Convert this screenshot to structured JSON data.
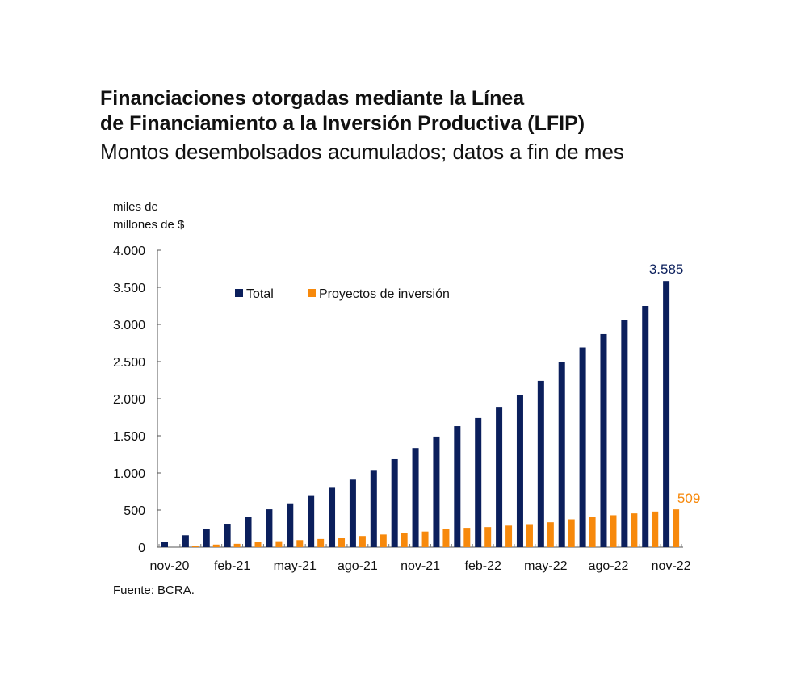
{
  "chart_data": {
    "type": "bar",
    "title": "Financiaciones otorgadas mediante la Línea de Financiamiento a la Inversión Productiva (LFIP)",
    "title_line1": "Financiaciones otorgadas mediante la Línea",
    "title_line2": "de Financiamiento a la Inversión Productiva (LFIP)",
    "subtitle": "Montos desembolsados acumulados; datos a fin de mes",
    "ylabel_line1": "miles de",
    "ylabel_line2": "millones de $",
    "ylim": [
      0,
      4000
    ],
    "yticks": [
      0,
      500,
      1000,
      1500,
      2000,
      2500,
      3000,
      3500,
      4000
    ],
    "ytick_labels": [
      "0",
      "500",
      "1.000",
      "1.500",
      "2.000",
      "2.500",
      "3.000",
      "3.500",
      "4.000"
    ],
    "categories": [
      "nov-20",
      "dic-20",
      "ene-21",
      "feb-21",
      "mar-21",
      "abr-21",
      "may-21",
      "jun-21",
      "jul-21",
      "ago-21",
      "sep-21",
      "oct-21",
      "nov-21",
      "dic-21",
      "ene-22",
      "feb-22",
      "mar-22",
      "abr-22",
      "may-22",
      "jun-22",
      "jul-22",
      "ago-22",
      "sep-22",
      "oct-22",
      "nov-22"
    ],
    "xtick_labels": [
      "nov-20",
      "feb-21",
      "may-21",
      "ago-21",
      "nov-21",
      "feb-22",
      "may-22",
      "ago-22",
      "nov-22"
    ],
    "series": [
      {
        "name": "Total",
        "color": "#0b1f5c",
        "values": [
          75,
          160,
          240,
          315,
          410,
          510,
          590,
          700,
          800,
          910,
          1040,
          1185,
          1335,
          1490,
          1630,
          1740,
          1890,
          2045,
          2240,
          2500,
          2690,
          2870,
          3055,
          3250,
          3585
        ]
      },
      {
        "name": "Proyectos de inversión",
        "color": "#f7890c",
        "values": [
          0,
          20,
          35,
          45,
          70,
          80,
          95,
          110,
          130,
          150,
          170,
          185,
          210,
          240,
          260,
          270,
          290,
          310,
          335,
          375,
          405,
          430,
          455,
          480,
          509
        ]
      }
    ],
    "annotations": [
      {
        "series": "Total",
        "label": "3.585"
      },
      {
        "series": "Proyectos de inversión",
        "label": "509"
      }
    ],
    "legend": "top-center",
    "source": "Fuente: BCRA."
  }
}
